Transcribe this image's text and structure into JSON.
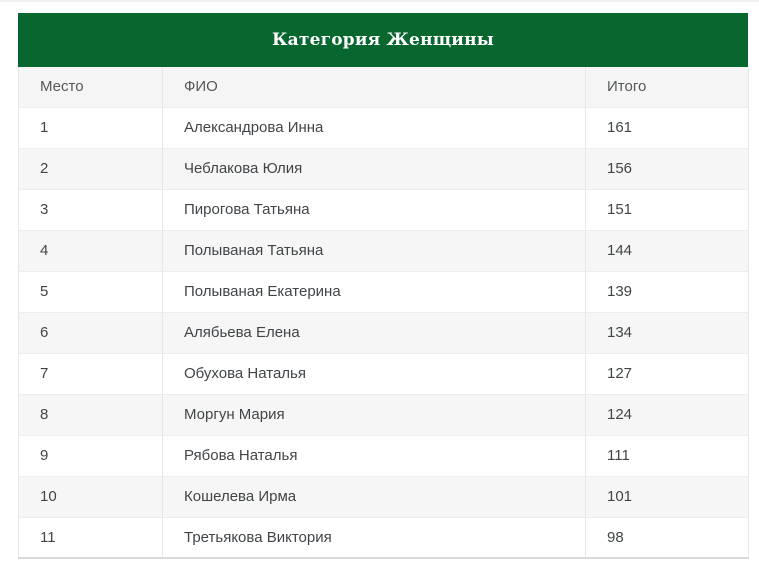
{
  "table": {
    "title": "Категория Женщины",
    "columns": [
      "Место",
      "ФИО",
      "Итого"
    ],
    "rows": [
      {
        "place": "1",
        "name": "Александрова Инна",
        "total": "161"
      },
      {
        "place": "2",
        "name": "Чеблакова Юлия",
        "total": "156"
      },
      {
        "place": "3",
        "name": "Пирогова Татьяна",
        "total": "151"
      },
      {
        "place": "4",
        "name": "Полываная Татьяна",
        "total": "144"
      },
      {
        "place": "5",
        "name": "Полываная Екатерина",
        "total": "139"
      },
      {
        "place": "6",
        "name": "Алябьева Елена",
        "total": "134"
      },
      {
        "place": "7",
        "name": "Обухова Наталья",
        "total": "127"
      },
      {
        "place": "8",
        "name": "Моргун Мария",
        "total": "124"
      },
      {
        "place": "9",
        "name": "Рябова Наталья",
        "total": "111"
      },
      {
        "place": "10",
        "name": "Кошелева Ирма",
        "total": "101"
      },
      {
        "place": "11",
        "name": "Третьякова Виктория",
        "total": "98"
      }
    ]
  },
  "colors": {
    "caption_background": "#08662f",
    "caption_text": "#ffffff",
    "header_row_background": "#f5f5f5",
    "zebra_row_background": "#f6f6f6",
    "body_text": "#414548"
  }
}
